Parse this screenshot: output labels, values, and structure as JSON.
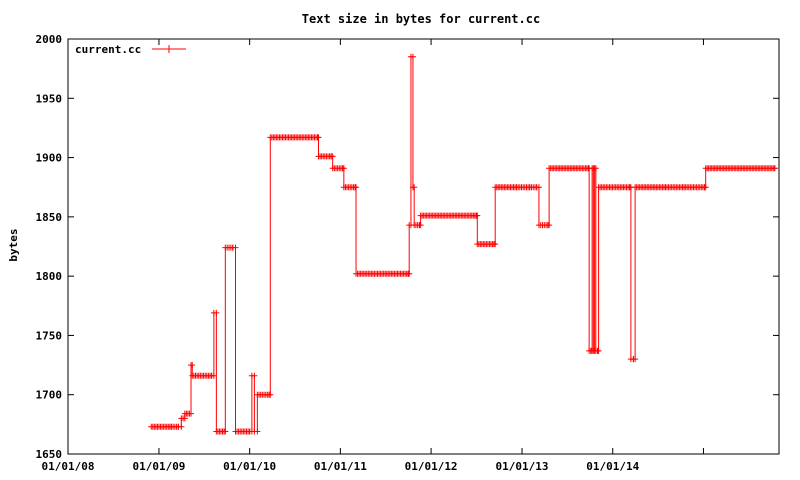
{
  "chart_data": {
    "type": "line",
    "title": "Text size in bytes for current.cc",
    "xlabel": "",
    "ylabel": "bytes",
    "x_tick_labels": [
      "01/01/08",
      "01/01/09",
      "01/01/10",
      "01/01/11",
      "01/01/12",
      "01/01/13",
      "01/01/14"
    ],
    "x_ticks": [
      "2008-01-01",
      "2009-01-01",
      "2010-01-01",
      "2011-01-01",
      "2012-01-01",
      "2013-01-01",
      "2014-01-01"
    ],
    "xlim": [
      "2008-01-01",
      "2015-11-01"
    ],
    "ylim": [
      1650,
      2000
    ],
    "y_ticks": [
      1650,
      1700,
      1750,
      1800,
      1850,
      1900,
      1950,
      2000
    ],
    "legend": "top-left",
    "grid": false,
    "colors": {
      "series": "#ff0000",
      "axis": "#000000"
    },
    "series": [
      {
        "name": "current.cc",
        "points": [
          [
            "2008-12-01",
            1673
          ],
          [
            "2009-02-20",
            1673
          ],
          [
            "2009-03-20",
            1673
          ],
          [
            "2009-04-01",
            1680
          ],
          [
            "2009-04-15",
            1684
          ],
          [
            "2009-05-10",
            1725
          ],
          [
            "2009-05-15",
            1716
          ],
          [
            "2009-08-01",
            1716
          ],
          [
            "2009-08-10",
            1769
          ],
          [
            "2009-08-20",
            1669
          ],
          [
            "2009-09-20",
            1669
          ],
          [
            "2009-09-25",
            1824
          ],
          [
            "2009-10-25",
            1824
          ],
          [
            "2009-11-05",
            1669
          ],
          [
            "2010-01-01",
            1669
          ],
          [
            "2010-01-10",
            1716
          ],
          [
            "2010-01-20",
            1669
          ],
          [
            "2010-02-01",
            1700
          ],
          [
            "2010-03-20",
            1700
          ],
          [
            "2010-03-25",
            1917
          ],
          [
            "2010-10-01",
            1917
          ],
          [
            "2010-10-05",
            1901
          ],
          [
            "2010-11-25",
            1901
          ],
          [
            "2010-12-01",
            1891
          ],
          [
            "2011-01-10",
            1891
          ],
          [
            "2011-01-15",
            1875
          ],
          [
            "2011-03-01",
            1875
          ],
          [
            "2011-03-05",
            1802
          ],
          [
            "2011-10-01",
            1802
          ],
          [
            "2011-10-05",
            1843
          ],
          [
            "2011-10-12",
            1985
          ],
          [
            "2011-10-20",
            1875
          ],
          [
            "2011-10-25",
            1843
          ],
          [
            "2011-11-15",
            1843
          ],
          [
            "2011-11-20",
            1851
          ],
          [
            "2012-07-01",
            1851
          ],
          [
            "2012-07-05",
            1827
          ],
          [
            "2012-09-10",
            1827
          ],
          [
            "2012-09-15",
            1875
          ],
          [
            "2012-12-10",
            1875
          ],
          [
            "2013-02-01",
            1875
          ],
          [
            "2013-03-01",
            1875
          ],
          [
            "2013-03-10",
            1843
          ],
          [
            "2013-04-15",
            1843
          ],
          [
            "2013-04-20",
            1891
          ],
          [
            "2013-09-25",
            1891
          ],
          [
            "2013-09-28",
            1737
          ],
          [
            "2013-10-05",
            1737
          ],
          [
            "2013-10-10",
            1891
          ],
          [
            "2013-10-15",
            1737
          ],
          [
            "2013-10-20",
            1891
          ],
          [
            "2013-10-25",
            1737
          ],
          [
            "2013-11-01",
            1737
          ],
          [
            "2013-11-05",
            1875
          ],
          [
            "2014-03-10",
            1875
          ],
          [
            "2014-03-15",
            1730
          ],
          [
            "2014-03-25",
            1730
          ],
          [
            "2014-04-01",
            1875
          ],
          [
            "2014-08-01",
            1875
          ],
          [
            "2014-10-15",
            1875
          ],
          [
            "2015-01-05",
            1875
          ],
          [
            "2015-01-10",
            1891
          ],
          [
            "2015-10-15",
            1891
          ]
        ]
      }
    ]
  }
}
